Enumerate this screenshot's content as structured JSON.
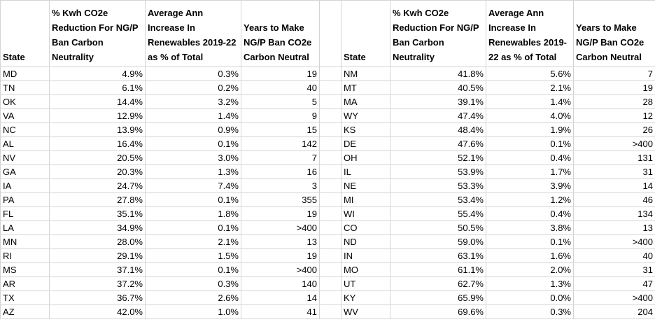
{
  "headers": {
    "state": "State",
    "reduction": "% Kwh CO2e Reduction For NG/P Ban Carbon Neutrality",
    "renewables": "Average Ann Increase In Renewables 2019-22 as % of Total",
    "years": "Years to Make NG/P Ban CO2e Carbon Neutral"
  },
  "left_rows": [
    {
      "state": "MD",
      "reduction": "4.9%",
      "renewables": "0.3%",
      "years": "19"
    },
    {
      "state": "TN",
      "reduction": "6.1%",
      "renewables": "0.2%",
      "years": "40"
    },
    {
      "state": "OK",
      "reduction": "14.4%",
      "renewables": "3.2%",
      "years": "5"
    },
    {
      "state": "VA",
      "reduction": "12.9%",
      "renewables": "1.4%",
      "years": "9"
    },
    {
      "state": "NC",
      "reduction": "13.9%",
      "renewables": "0.9%",
      "years": "15"
    },
    {
      "state": "AL",
      "reduction": "16.4%",
      "renewables": "0.1%",
      "years": "142"
    },
    {
      "state": "NV",
      "reduction": "20.5%",
      "renewables": "3.0%",
      "years": "7"
    },
    {
      "state": "GA",
      "reduction": "20.3%",
      "renewables": "1.3%",
      "years": "16"
    },
    {
      "state": "IA",
      "reduction": "24.7%",
      "renewables": "7.4%",
      "years": "3"
    },
    {
      "state": "PA",
      "reduction": "27.8%",
      "renewables": "0.1%",
      "years": "355"
    },
    {
      "state": "FL",
      "reduction": "35.1%",
      "renewables": "1.8%",
      "years": "19"
    },
    {
      "state": "LA",
      "reduction": "34.9%",
      "renewables": "0.1%",
      "years": ">400"
    },
    {
      "state": "MN",
      "reduction": "28.0%",
      "renewables": "2.1%",
      "years": "13"
    },
    {
      "state": "RI",
      "reduction": "29.1%",
      "renewables": "1.5%",
      "years": "19"
    },
    {
      "state": "MS",
      "reduction": "37.1%",
      "renewables": "0.1%",
      "years": ">400"
    },
    {
      "state": "AR",
      "reduction": "37.2%",
      "renewables": "0.3%",
      "years": "140"
    },
    {
      "state": "TX",
      "reduction": "36.7%",
      "renewables": "2.6%",
      "years": "14"
    },
    {
      "state": "AZ",
      "reduction": "42.0%",
      "renewables": "1.0%",
      "years": "41"
    }
  ],
  "right_rows": [
    {
      "state": "NM",
      "reduction": "41.8%",
      "renewables": "5.6%",
      "years": "7"
    },
    {
      "state": "MT",
      "reduction": "40.5%",
      "renewables": "2.1%",
      "years": "19"
    },
    {
      "state": "MA",
      "reduction": "39.1%",
      "renewables": "1.4%",
      "years": "28"
    },
    {
      "state": "WY",
      "reduction": "47.4%",
      "renewables": "4.0%",
      "years": "12"
    },
    {
      "state": "KS",
      "reduction": "48.4%",
      "renewables": "1.9%",
      "years": "26"
    },
    {
      "state": "DE",
      "reduction": "47.6%",
      "renewables": "0.1%",
      "years": ">400"
    },
    {
      "state": "OH",
      "reduction": "52.1%",
      "renewables": "0.4%",
      "years": "131"
    },
    {
      "state": "IL",
      "reduction": "53.9%",
      "renewables": "1.7%",
      "years": "31"
    },
    {
      "state": "NE",
      "reduction": "53.3%",
      "renewables": "3.9%",
      "years": "14"
    },
    {
      "state": "MI",
      "reduction": "53.4%",
      "renewables": "1.2%",
      "years": "46"
    },
    {
      "state": "WI",
      "reduction": "55.4%",
      "renewables": "0.4%",
      "years": "134"
    },
    {
      "state": "CO",
      "reduction": "50.5%",
      "renewables": "3.8%",
      "years": "13"
    },
    {
      "state": "ND",
      "reduction": "59.0%",
      "renewables": "0.1%",
      "years": ">400"
    },
    {
      "state": "IN",
      "reduction": "63.1%",
      "renewables": "1.6%",
      "years": "40"
    },
    {
      "state": "MO",
      "reduction": "61.1%",
      "renewables": "2.0%",
      "years": "31"
    },
    {
      "state": "UT",
      "reduction": "62.7%",
      "renewables": "1.3%",
      "years": "47"
    },
    {
      "state": "KY",
      "reduction": "65.9%",
      "renewables": "0.0%",
      "years": ">400"
    },
    {
      "state": "WV",
      "reduction": "69.6%",
      "renewables": "0.3%",
      "years": "204"
    }
  ]
}
